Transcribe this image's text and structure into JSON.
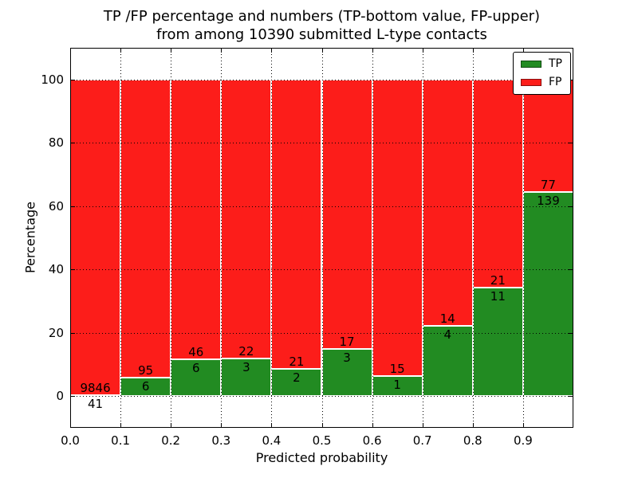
{
  "figure": {
    "title_line1": "TP /FP percentage and numbers (TP-bottom value, FP-upper)",
    "title_line2": "from among 10390 submitted L-type contacts"
  },
  "chart_data": {
    "type": "bar",
    "stacked": true,
    "title": "TP /FP percentage and numbers (TP-bottom value, FP-upper) from among 10390 submitted L-type contacts",
    "xlabel": "Predicted probability",
    "ylabel": "Percentage",
    "total_submitted_contacts": 10390,
    "bins": [
      "0.0-0.1",
      "0.1-0.2",
      "0.2-0.3",
      "0.3-0.4",
      "0.4-0.5",
      "0.5-0.6",
      "0.6-0.7",
      "0.7-0.8",
      "0.8-0.9",
      "0.9-1.0"
    ],
    "x_tick_labels": [
      "0.0",
      "0.1",
      "0.2",
      "0.3",
      "0.4",
      "0.5",
      "0.6",
      "0.7",
      "0.8",
      "0.9"
    ],
    "y_ticks": [
      0,
      20,
      40,
      60,
      80,
      100
    ],
    "xlim": [
      0.0,
      1.0
    ],
    "ylim": [
      -10,
      110
    ],
    "grid": "dotted",
    "legend_position": "upper right",
    "series": [
      {
        "name": "TP",
        "color": "#228b22",
        "counts": [
          41,
          6,
          6,
          3,
          2,
          3,
          1,
          4,
          11,
          139
        ]
      },
      {
        "name": "FP",
        "color": "#fc1d1a",
        "counts": [
          9846,
          95,
          46,
          22,
          21,
          17,
          15,
          14,
          21,
          77
        ]
      }
    ],
    "tp_percent_of_bin": [
      0.41,
      5.94,
      11.54,
      12.0,
      8.7,
      15.0,
      6.25,
      22.22,
      34.38,
      64.35
    ],
    "bar_edge_color": "#ffffff"
  },
  "legend": {
    "items": [
      {
        "label": "TP",
        "color": "#228b22"
      },
      {
        "label": "FP",
        "color": "#fc1d1a"
      }
    ]
  }
}
